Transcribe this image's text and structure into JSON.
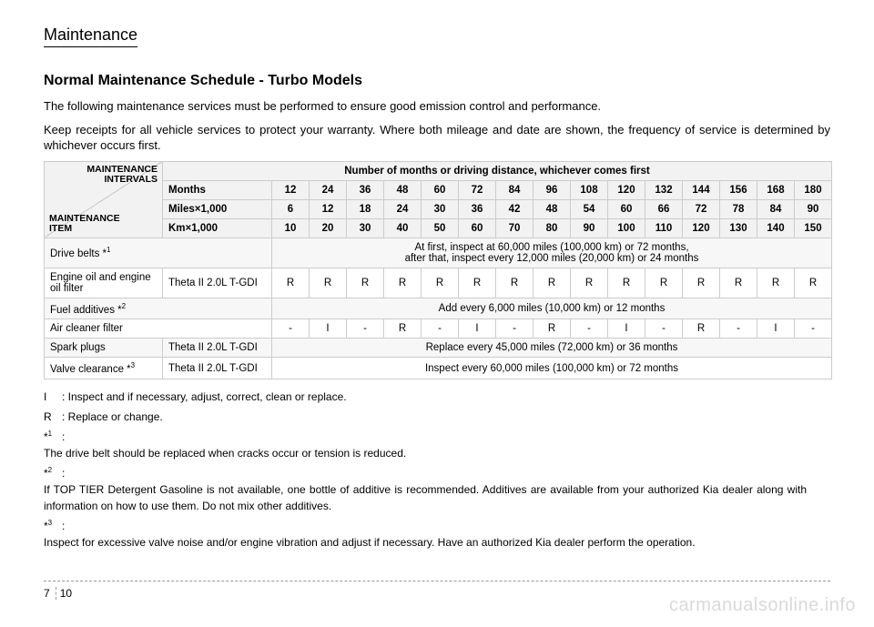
{
  "section": "Maintenance",
  "title": "Normal Maintenance Schedule - Turbo Models",
  "intro1": "The following maintenance services must be performed to ensure good emission control and performance.",
  "intro2": "Keep receipts for all vehicle services to protect your warranty. Where both mileage and date are shown, the frequency of service is determined by whichever occurs first.",
  "table": {
    "header_top": "MAINTENANCE",
    "header_top2": "INTERVALS",
    "header_bot": "MAINTENANCE",
    "header_bot2": "ITEM",
    "number_header": "Number of months or driving distance, whichever comes first",
    "row_labels": [
      "Months",
      "Miles×1,000",
      "Km×1,000"
    ],
    "months": [
      "12",
      "24",
      "36",
      "48",
      "60",
      "72",
      "84",
      "96",
      "108",
      "120",
      "132",
      "144",
      "156",
      "168",
      "180"
    ],
    "miles": [
      "6",
      "12",
      "18",
      "24",
      "30",
      "36",
      "42",
      "48",
      "54",
      "60",
      "66",
      "72",
      "78",
      "84",
      "90"
    ],
    "km": [
      "10",
      "20",
      "30",
      "40",
      "50",
      "60",
      "70",
      "80",
      "90",
      "100",
      "110",
      "120",
      "130",
      "140",
      "150"
    ],
    "rows": [
      {
        "item": "Drive belts *",
        "sup": "1",
        "engine": "",
        "span_text": "At first, inspect at 60,000 miles (100,000 km) or 72 months,\nafter that, inspect every 12,000 miles (20,000 km) or 24 months"
      },
      {
        "item": "Engine oil and engine oil filter",
        "engine": "Theta II 2.0L T-GDI",
        "cells": [
          "R",
          "R",
          "R",
          "R",
          "R",
          "R",
          "R",
          "R",
          "R",
          "R",
          "R",
          "R",
          "R",
          "R",
          "R"
        ]
      },
      {
        "item": "Fuel additives *",
        "sup": "2",
        "engine": "",
        "span_text": "Add every 6,000 miles (10,000 km) or 12 months"
      },
      {
        "item": "Air cleaner filter",
        "engine": "",
        "cells": [
          "-",
          "I",
          "-",
          "R",
          "-",
          "I",
          "-",
          "R",
          "-",
          "I",
          "-",
          "R",
          "-",
          "I",
          "-"
        ]
      },
      {
        "item": "Spark plugs",
        "engine": "Theta II 2.0L T-GDI",
        "span_text": "Replace every 45,000 miles (72,000 km) or 36 months"
      },
      {
        "item": "Valve clearance *",
        "sup": "3",
        "engine": "Theta II 2.0L T-GDI",
        "span_text": "Inspect every 60,000 miles (100,000 km) or 72 months"
      }
    ],
    "header_bg": "#f2f2f2",
    "border_color": "#cccccc"
  },
  "footnotes": {
    "I": "Inspect and if necessary, adjust, correct, clean or replace.",
    "R": "Replace or change.",
    "f1": "The drive belt should be replaced when cracks occur or tension is reduced.",
    "f2": "If TOP TIER Detergent Gasoline is not available, one bottle of additive is recommended. Additives are available from your authorized Kia dealer along with information on how to use them. Do not mix other additives.",
    "f3": "Inspect for excessive valve noise and/or engine vibration and adjust if necessary. Have an authorized Kia dealer perform the operation."
  },
  "page_chapter": "7",
  "page_number": "10",
  "watermark": "carmanualsonline.info"
}
